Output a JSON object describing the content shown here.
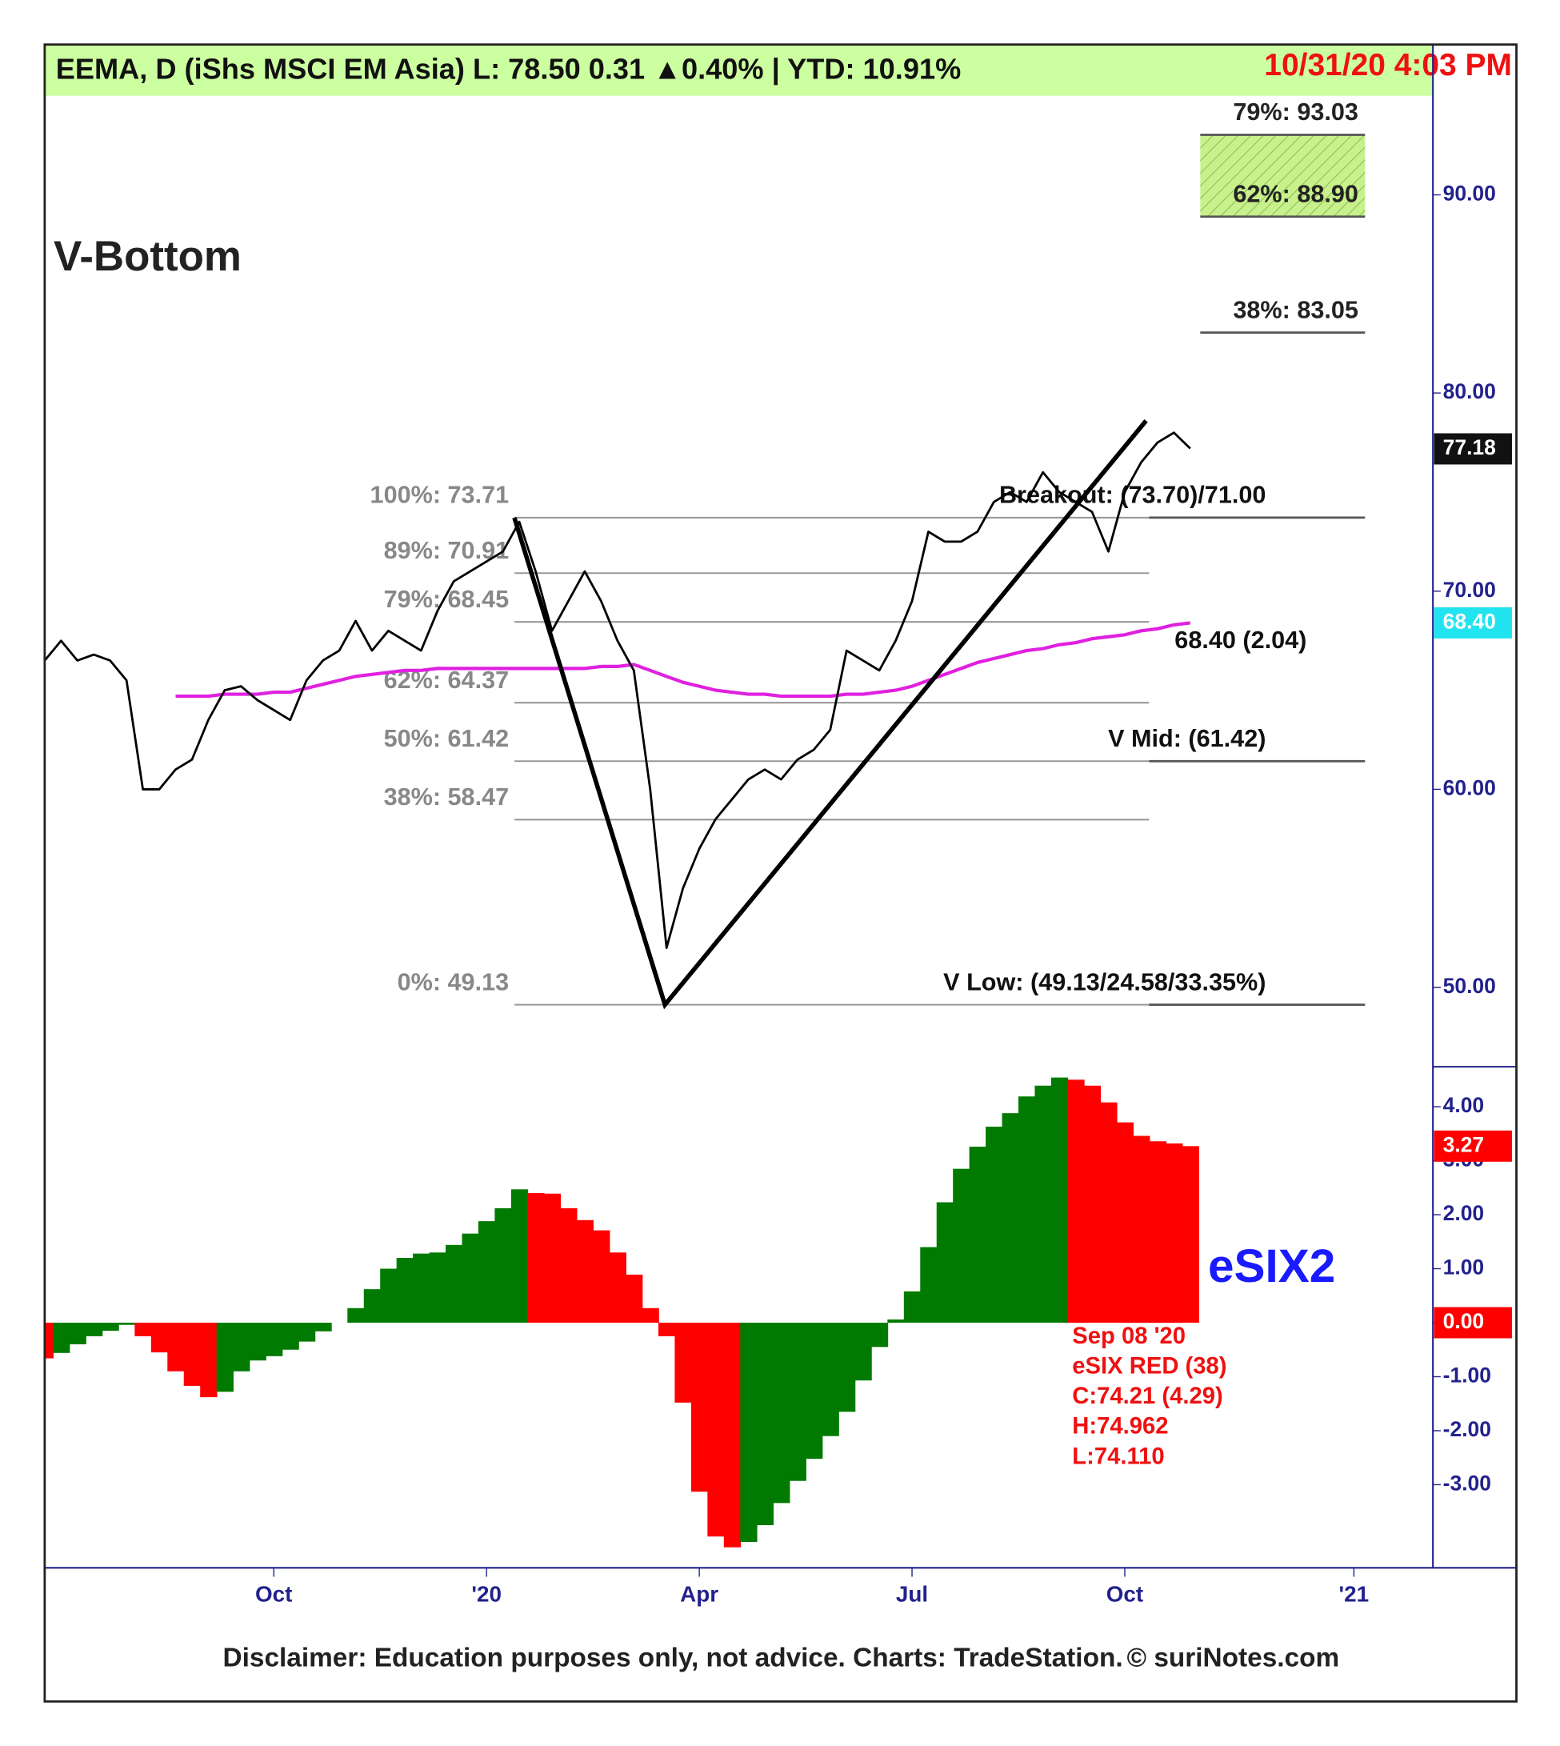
{
  "chart_data": {
    "type": "line",
    "header": "EEMA, D (iShs MSCI EM Asia)  L: 78.50  0.31 ▲0.40%  |  YTD: 10.91%",
    "timestamp": "10/31/20 4:03 PM",
    "title": "V-Bottom",
    "categories": [
      null,
      null,
      null,
      null,
      null,
      null,
      null,
      null,
      null,
      null,
      null,
      null,
      null,
      null,
      "Oct",
      null,
      null,
      null,
      null,
      null,
      null,
      null,
      null,
      null,
      null,
      null,
      null,
      "'20",
      null,
      null,
      null,
      null,
      null,
      null,
      null,
      null,
      null,
      null,
      null,
      null,
      "Apr",
      null,
      null,
      null,
      null,
      null,
      null,
      null,
      null,
      null,
      null,
      null,
      null,
      "Jul",
      null,
      null,
      null,
      null,
      null,
      null,
      null,
      null,
      null,
      null,
      null,
      null,
      "Oct",
      null,
      null,
      null,
      null,
      null,
      null,
      null,
      null,
      null,
      null,
      null,
      null,
      null,
      "'21",
      null,
      null,
      null,
      null,
      null
    ],
    "ylim": [
      46,
      95
    ],
    "yticks": [
      {
        "value": 50,
        "label": "50.00"
      },
      {
        "value": 60,
        "label": "60.00"
      },
      {
        "value": 70,
        "label": "70.00"
      },
      {
        "value": 80,
        "label": "80.00"
      },
      {
        "value": 90,
        "label": "90.00"
      }
    ],
    "price": {
      "color": "#000000",
      "values": [
        66.5,
        67.5,
        66.5,
        66.8,
        66.5,
        65.5,
        60,
        60,
        61,
        61.5,
        63.5,
        65,
        65.2,
        64.5,
        64,
        63.5,
        65.5,
        66.5,
        67,
        68.5,
        67,
        68,
        67.5,
        67,
        69,
        70.5,
        71,
        71.5,
        72,
        73.5,
        71,
        68,
        69.5,
        71,
        69.5,
        67.5,
        66,
        60,
        52,
        55,
        57,
        58.5,
        59.5,
        60.5,
        61,
        60.5,
        61.5,
        62,
        63,
        67,
        66.5,
        66,
        67.5,
        69.5,
        73,
        72.5,
        72.5,
        73,
        74.5,
        75,
        74.5,
        76,
        75,
        74.5,
        74,
        72,
        75,
        76.5,
        77.5,
        78,
        77.2,
        null,
        null,
        null,
        null,
        null,
        null,
        null,
        null,
        null,
        null,
        null,
        null,
        null,
        null,
        null
      ]
    },
    "price_last": 77.18,
    "ma": {
      "color": "#e020e0",
      "values": [
        null,
        null,
        null,
        null,
        null,
        null,
        null,
        null,
        64.7,
        64.7,
        64.7,
        64.8,
        64.8,
        64.8,
        64.9,
        64.9,
        65.1,
        65.3,
        65.5,
        65.7,
        65.8,
        65.9,
        66.0,
        66.0,
        66.1,
        66.1,
        66.1,
        66.1,
        66.1,
        66.1,
        66.1,
        66.1,
        66.1,
        66.1,
        66.2,
        66.2,
        66.3,
        66.0,
        65.7,
        65.4,
        65.2,
        65.0,
        64.9,
        64.8,
        64.8,
        64.7,
        64.7,
        64.7,
        64.7,
        64.8,
        64.8,
        64.9,
        65.0,
        65.2,
        65.5,
        65.8,
        66.1,
        66.4,
        66.6,
        66.8,
        67.0,
        67.1,
        67.3,
        67.4,
        67.6,
        67.7,
        67.8,
        68.0,
        68.1,
        68.3,
        68.4,
        null,
        null,
        null,
        null,
        null,
        null,
        null,
        null,
        null,
        null,
        null,
        null,
        null,
        null,
        null
      ]
    },
    "ma_last": {
      "value": 68.4,
      "label": "68.40"
    },
    "ma_note": "68.40 (2.04)",
    "v_line": {
      "x": [
        28.7,
        37.9,
        67.3
      ],
      "y": [
        73.71,
        49.13,
        78.6
      ]
    },
    "fib_levels": [
      {
        "label": "100%: 73.71",
        "value": 73.71
      },
      {
        "label": "89%: 70.91",
        "value": 70.91
      },
      {
        "label": "79%: 68.45",
        "value": 68.45
      },
      {
        "label": "62%: 64.37",
        "value": 64.37
      },
      {
        "label": "50%: 61.42",
        "value": 61.42
      },
      {
        "label": "38%: 58.47",
        "value": 58.47
      },
      {
        "label": "0%: 49.13",
        "value": 49.13
      }
    ],
    "fib_targets": [
      {
        "label": "79%: 93.03",
        "value": 93.03
      },
      {
        "label": "62%: 88.90",
        "value": 88.9
      },
      {
        "label": "38%: 83.05",
        "value": 83.05
      }
    ],
    "annotations": [
      {
        "text": "Breakout: (73.70)/71.00",
        "value": 73.71
      },
      {
        "text": "V Mid: (61.42)",
        "value": 61.42
      },
      {
        "text": "V Low: (49.13/24.58/33.35%)",
        "value": 49.13
      }
    ],
    "lower_panel": {
      "type": "bar",
      "name": "eSIX2",
      "ylim": [
        -4.54,
        4.74
      ],
      "yticks": [
        {
          "value": -3,
          "label": "-3.00"
        },
        {
          "value": -2,
          "label": "-2.00"
        },
        {
          "value": -1,
          "label": "-1.00"
        },
        {
          "value": 0,
          "label": "0.00"
        },
        {
          "value": 1,
          "label": "1.00"
        },
        {
          "value": 2,
          "label": "2.00"
        },
        {
          "value": 3,
          "label": "3.00"
        },
        {
          "value": 4,
          "label": "4.00"
        }
      ],
      "up_color": "#007a00",
      "down_color": "#ff0000",
      "values": [
        -0.66,
        -0.56,
        -0.4,
        -0.25,
        -0.15,
        -0.04,
        -0.25,
        -0.55,
        -0.9,
        -1.17,
        -1.38,
        -1.28,
        -0.9,
        -0.7,
        -0.62,
        -0.5,
        -0.35,
        -0.16,
        0,
        0.27,
        0.62,
        1.0,
        1.2,
        1.28,
        1.3,
        1.44,
        1.65,
        1.88,
        2.12,
        2.47,
        2.4,
        2.39,
        2.12,
        1.9,
        1.71,
        1.3,
        0.89,
        0.27,
        -0.25,
        -1.48,
        -3.13,
        -3.96,
        -4.16,
        -4.06,
        -3.75,
        -3.34,
        -2.93,
        -2.52,
        -2.1,
        -1.65,
        -1.07,
        -0.45,
        0.06,
        0.58,
        1.4,
        2.23,
        2.85,
        3.26,
        3.63,
        3.88,
        4.19,
        4.39,
        4.54,
        4.5,
        4.39,
        4.08,
        3.71,
        3.46,
        3.36,
        3.32,
        3.27,
        null,
        null,
        null,
        null,
        null,
        null,
        null,
        null,
        null,
        null,
        null,
        null,
        null,
        null,
        null
      ],
      "last": 3.27,
      "info": [
        "Sep 08 '20",
        "eSIX RED (38)",
        "C:74.21 (4.29)",
        "H:74.962",
        "L:74.110"
      ]
    },
    "footer": "Disclaimer: Education purposes only, not advice.  Charts: TradeStation.",
    "credit": "© suriNotes.com"
  }
}
